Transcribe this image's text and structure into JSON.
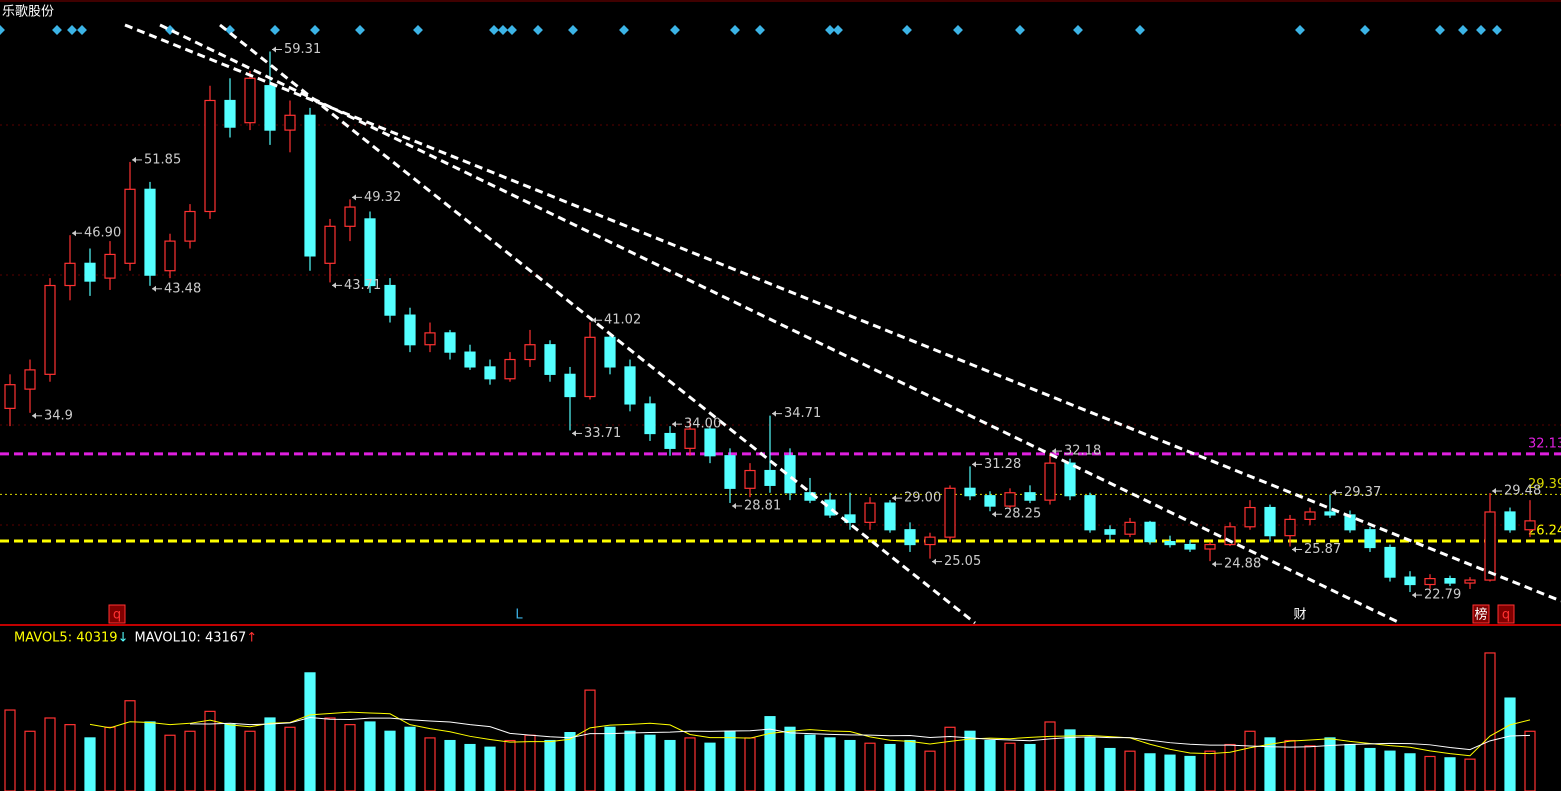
{
  "chart_data": {
    "type": "candlestick",
    "title": "乐歌股份",
    "open": [
      35.2,
      36.5,
      37.5,
      43.5,
      45.0,
      44.0,
      45.0,
      50.0,
      44.5,
      46.5,
      48.5,
      56.0,
      54.5,
      57.0,
      54.0,
      55.0,
      45.0,
      47.5,
      48.0,
      43.5,
      41.5,
      39.5,
      40.3,
      39.0,
      38.0,
      37.2,
      38.5,
      39.5,
      37.5,
      36.0,
      40.0,
      38.0,
      35.5,
      33.5,
      32.5,
      33.8,
      32.0,
      29.8,
      31.0,
      32.0,
      29.5,
      29.0,
      28.0,
      27.5,
      28.8,
      27.0,
      26.0,
      26.5,
      29.8,
      29.3,
      28.6,
      29.5,
      29.0,
      31.5,
      29.3,
      27.0,
      26.7,
      27.5,
      26.2,
      26.0,
      25.7,
      26.0,
      27.2,
      28.5,
      26.6,
      27.7,
      28.2,
      28.0,
      27.0,
      25.8,
      23.8,
      23.3,
      23.7,
      23.4,
      23.6,
      28.2,
      27.0
    ],
    "high": [
      37.5,
      38.5,
      44.0,
      46.9,
      46.0,
      46.5,
      51.85,
      50.5,
      47.0,
      49.0,
      57.0,
      57.5,
      58.0,
      59.31,
      56.0,
      55.5,
      48.0,
      49.32,
      48.5,
      44.0,
      42.0,
      41.0,
      40.5,
      39.5,
      38.5,
      39.0,
      40.5,
      39.8,
      38.0,
      41.02,
      40.3,
      38.5,
      36.0,
      34.0,
      34.5,
      34.0,
      32.5,
      31.5,
      34.71,
      32.5,
      30.5,
      29.5,
      29.5,
      29.2,
      29.0,
      27.5,
      26.8,
      30.0,
      31.28,
      29.6,
      29.8,
      30.0,
      32.18,
      31.8,
      29.5,
      27.3,
      27.8,
      27.6,
      26.6,
      26.3,
      26.2,
      27.5,
      29.0,
      28.7,
      28.0,
      28.5,
      29.37,
      28.3,
      27.2,
      26.0,
      24.2,
      24.0,
      23.9,
      23.8,
      29.48,
      28.5,
      29.0
    ],
    "low": [
      34.0,
      34.9,
      37.0,
      42.5,
      42.8,
      43.2,
      44.5,
      43.48,
      44.0,
      46.0,
      48.0,
      53.5,
      54.0,
      53.0,
      52.5,
      44.5,
      43.71,
      46.5,
      43.0,
      41.0,
      39.0,
      39.0,
      38.5,
      37.8,
      36.8,
      37.0,
      38.0,
      37.0,
      33.71,
      35.8,
      37.5,
      35.0,
      33.0,
      32.0,
      32.0,
      31.5,
      28.81,
      29.2,
      29.5,
      29.0,
      28.8,
      27.8,
      27.0,
      27.0,
      26.8,
      25.5,
      25.05,
      26.2,
      29.0,
      28.25,
      28.4,
      28.8,
      28.7,
      29.0,
      26.8,
      26.3,
      26.5,
      26.0,
      25.8,
      25.5,
      24.88,
      25.9,
      27.0,
      26.2,
      25.87,
      27.3,
      27.8,
      26.8,
      25.5,
      23.5,
      22.79,
      23.0,
      23.2,
      23.0,
      23.5,
      26.8,
      26.5
    ],
    "close": [
      36.8,
      37.8,
      43.5,
      45.0,
      43.8,
      45.6,
      50.0,
      44.2,
      46.5,
      48.5,
      56.0,
      54.2,
      57.5,
      54.0,
      55.0,
      45.5,
      47.5,
      48.8,
      43.5,
      41.5,
      39.5,
      40.3,
      39.0,
      38.0,
      37.2,
      38.5,
      39.5,
      37.5,
      36.0,
      40.0,
      38.0,
      35.5,
      33.5,
      32.5,
      33.8,
      32.0,
      29.8,
      31.0,
      30.0,
      29.5,
      29.0,
      28.0,
      27.5,
      28.8,
      27.0,
      26.0,
      26.5,
      29.8,
      29.3,
      28.6,
      29.5,
      29.0,
      31.5,
      29.3,
      27.0,
      26.7,
      27.5,
      26.2,
      26.0,
      25.7,
      26.0,
      27.2,
      28.5,
      26.6,
      27.7,
      28.2,
      28.0,
      27.0,
      25.8,
      23.8,
      23.3,
      23.7,
      23.4,
      23.6,
      28.2,
      27.0,
      27.6
    ],
    "volume": [
      61000,
      45000,
      55000,
      50000,
      40000,
      48000,
      68000,
      52000,
      42000,
      45000,
      60000,
      50000,
      45000,
      55000,
      48000,
      89000,
      55000,
      50000,
      52000,
      45000,
      48000,
      40000,
      38000,
      35000,
      33000,
      38000,
      42000,
      38000,
      44000,
      76000,
      48000,
      45000,
      42000,
      38000,
      40000,
      36000,
      45000,
      40000,
      56000,
      48000,
      42000,
      40000,
      38000,
      36000,
      35000,
      38000,
      30000,
      48000,
      45000,
      38000,
      36000,
      35000,
      52000,
      46000,
      40000,
      32000,
      30000,
      28000,
      27000,
      26000,
      30000,
      35000,
      45000,
      40000,
      38000,
      34000,
      40000,
      35000,
      32000,
      30000,
      28000,
      26000,
      25000,
      24000,
      104000,
      70000,
      45000
    ],
    "ylim": [
      20.7,
      61.1
    ],
    "volume_ylim": [
      0,
      110000
    ],
    "up_color": "#ff3232",
    "down_color": "#54ffff",
    "annotations": [
      {
        "value": 34.0,
        "label": "34.00"
      },
      34.9,
      {
        "value": 46.9,
        "label": "46.90"
      },
      51.85,
      43.48,
      59.31,
      43.71,
      49.32,
      33.71,
      41.02,
      28.81,
      34.71,
      25.05,
      31.28,
      28.25,
      32.18,
      24.88,
      {
        "value": 29.0,
        "label": "29.00"
      },
      25.87,
      29.37,
      22.79,
      29.48
    ],
    "hlines": [
      {
        "value": 32.13,
        "color": "#e020e0"
      },
      {
        "value": 29.39,
        "color": "#d8d800"
      },
      {
        "value": 26.24,
        "color": "#ffff00"
      }
    ],
    "event_marks": [
      "q",
      "L",
      "财",
      "榜",
      "q"
    ],
    "volume_legend": [
      {
        "text": "MAVOL5: 40319",
        "arrow": "↓"
      },
      {
        "text": "MAVOL10: 43167",
        "arrow": "↑"
      }
    ]
  }
}
